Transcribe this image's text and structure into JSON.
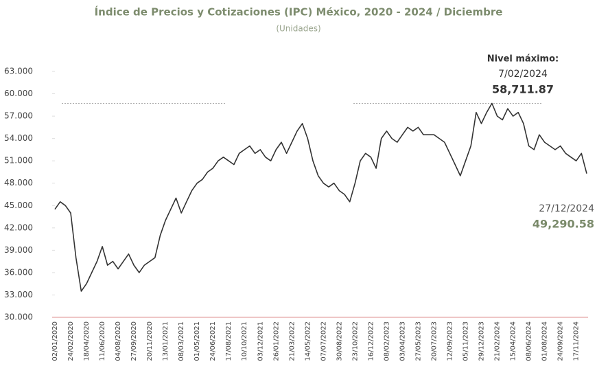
{
  "chart_data": {
    "type": "line",
    "title": "Índice de Precios y Cotizaciones (IPC) México, 2020 - 2024 / Diciembre",
    "subtitle": "(Unidades)",
    "categories": [
      "02/01/2020",
      null,
      null,
      "24/02/2020",
      null,
      null,
      "18/04/2020",
      null,
      null,
      "11/06/2020",
      null,
      null,
      "04/08/2020",
      null,
      null,
      "27/09/2020",
      null,
      null,
      "20/11/2020",
      null,
      null,
      "13/01/2021",
      null,
      null,
      "08/03/2021",
      null,
      null,
      "01/05/2021",
      null,
      null,
      "24/06/2021",
      null,
      null,
      "17/08/2021",
      null,
      null,
      "10/10/2021",
      null,
      null,
      "03/12/2021",
      null,
      null,
      "26/01/2022",
      null,
      null,
      "21/03/2022",
      null,
      null,
      "14/05/2022",
      null,
      null,
      "07/07/2022",
      null,
      null,
      "30/08/2022",
      null,
      null,
      "23/10/2022",
      null,
      null,
      "16/12/2022",
      null,
      null,
      "08/02/2023",
      null,
      null,
      "03/04/2023",
      null,
      null,
      "27/05/2023",
      null,
      null,
      "20/07/2023",
      null,
      null,
      "12/09/2023",
      null,
      null,
      "05/11/2023",
      null,
      null,
      "29/12/2023",
      null,
      null,
      "21/02/2024",
      null,
      null,
      "15/04/2024",
      null,
      null,
      "08/06/2024",
      null,
      null,
      "01/08/2024",
      null,
      null,
      "24/09/2024",
      null,
      null,
      "17/11/2024",
      null,
      null
    ],
    "values": [
      44500,
      45500,
      45000,
      44000,
      38000,
      33500,
      34500,
      36000,
      37500,
      39500,
      37000,
      37500,
      36500,
      37500,
      38500,
      37000,
      36000,
      37000,
      37500,
      38000,
      41000,
      43000,
      44500,
      46000,
      44000,
      45500,
      47000,
      48000,
      48500,
      49500,
      50000,
      51000,
      51500,
      51000,
      50500,
      52000,
      52500,
      53000,
      52000,
      52500,
      51500,
      51000,
      52500,
      53500,
      52000,
      53500,
      55000,
      56000,
      54000,
      51000,
      49000,
      48000,
      47500,
      48000,
      47000,
      46500,
      45500,
      48000,
      51000,
      52000,
      51500,
      50000,
      54000,
      55000,
      54000,
      53500,
      54500,
      55500,
      55000,
      55500,
      54500,
      54500,
      54500,
      54000,
      53500,
      52000,
      50500,
      49000,
      51000,
      53000,
      57500,
      56000,
      57500,
      58711.87,
      57000,
      56500,
      58000,
      57000,
      57500,
      56000,
      53000,
      52500,
      54500,
      53500,
      53000,
      52500,
      53000,
      52000,
      51500,
      51000,
      52000,
      49290.58
    ],
    "value_labels": [
      null,
      null,
      null,
      null,
      null,
      null,
      null,
      null,
      null,
      null,
      null,
      null,
      null,
      null,
      null,
      null,
      null,
      null,
      null,
      null,
      null,
      null,
      null,
      null,
      null,
      null,
      null,
      null,
      null,
      null,
      null,
      null,
      null,
      null,
      null,
      null,
      null,
      null,
      null,
      null,
      null,
      null,
      null,
      null,
      null,
      null,
      null,
      null,
      null,
      null,
      null,
      null,
      null,
      null,
      null,
      null,
      null,
      null,
      null,
      null,
      null,
      null,
      null,
      null,
      null,
      null,
      null,
      null,
      null,
      null,
      null,
      null,
      null,
      null,
      null,
      null,
      null,
      null,
      null,
      null,
      null,
      null,
      null,
      "58,711.87",
      null,
      null,
      null,
      null,
      null,
      null,
      null,
      null,
      null,
      null,
      null,
      null,
      null,
      null,
      null,
      null,
      null,
      "49,290.58"
    ],
    "color": "#333333",
    "max_note": {
      "title": "Nivel máximo:",
      "date": "7/02/2024"
    },
    "last_note": {
      "date": "27/12/2024"
    },
    "ylim": [
      30000,
      63000
    ],
    "yticks": [
      {
        "value": 30000,
        "label": "30.000"
      },
      {
        "value": 33000,
        "label": "33.000"
      },
      {
        "value": 36000,
        "label": "36.000"
      },
      {
        "value": 39000,
        "label": "39.000"
      },
      {
        "value": 42000,
        "label": "42.000"
      },
      {
        "value": 45000,
        "label": "45.000"
      },
      {
        "value": 48000,
        "label": "48.000"
      },
      {
        "value": 51000,
        "label": "51.000"
      },
      {
        "value": 54000,
        "label": "54.000"
      },
      {
        "value": 57000,
        "label": "57.000"
      },
      {
        "value": 60000,
        "label": "60.000"
      },
      {
        "value": 63000,
        "label": "63.000"
      }
    ]
  }
}
